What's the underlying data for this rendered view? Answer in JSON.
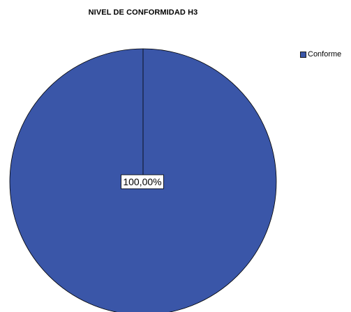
{
  "chart_data": {
    "type": "pie",
    "title": "NIVEL DE CONFORMIDAD H3",
    "categories": [
      "Conforme"
    ],
    "values": [
      100
    ],
    "data_labels": [
      "100,00%"
    ],
    "colors": [
      "#3a56a8"
    ],
    "legend_position": "top-right"
  }
}
